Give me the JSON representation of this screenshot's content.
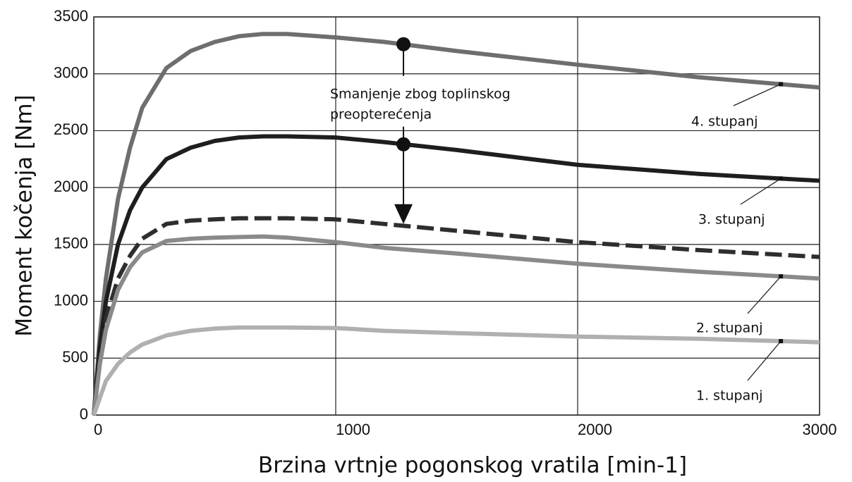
{
  "chart_data": {
    "type": "line",
    "xlabel": "Brzina vrtnje pogonskog vratila [min-1]",
    "ylabel": "Moment kočenja [Nm]",
    "x": [
      0,
      25,
      50,
      100,
      150,
      200,
      300,
      400,
      500,
      600,
      700,
      800,
      1000,
      1200,
      1500,
      2000,
      2500,
      3000
    ],
    "series": [
      {
        "name": "4. stupanj",
        "color": "#6e6e6e",
        "values": [
          0,
          700,
          1200,
          1900,
          2350,
          2700,
          3050,
          3200,
          3280,
          3330,
          3350,
          3350,
          3320,
          3280,
          3200,
          3080,
          2970,
          2880
        ]
      },
      {
        "name": "3. stupanj",
        "color": "#1e1e1e",
        "values": [
          0,
          600,
          1000,
          1500,
          1800,
          2000,
          2250,
          2350,
          2410,
          2440,
          2450,
          2450,
          2440,
          2400,
          2330,
          2200,
          2120,
          2060
        ]
      },
      {
        "color": "#2e2e2e",
        "dashed": true,
        "values": [
          0,
          500,
          850,
          1200,
          1400,
          1550,
          1680,
          1710,
          1720,
          1730,
          1730,
          1730,
          1720,
          1680,
          1620,
          1520,
          1450,
          1390
        ]
      },
      {
        "name": "2. stupanj",
        "color": "#8a8a8a",
        "values": [
          0,
          450,
          750,
          1100,
          1300,
          1430,
          1530,
          1550,
          1560,
          1565,
          1570,
          1560,
          1520,
          1470,
          1420,
          1330,
          1260,
          1200
        ]
      },
      {
        "name": "1. stupanj",
        "color": "#b0b0b0",
        "values": [
          0,
          150,
          300,
          450,
          550,
          620,
          700,
          740,
          760,
          770,
          770,
          770,
          765,
          740,
          720,
          690,
          670,
          640
        ]
      }
    ],
    "annotation": {
      "text": [
        "Smanjenje zbog toplinskog",
        "preopterećenja"
      ],
      "x": 1280,
      "from": 3260,
      "mid": 2380,
      "to": 1680
    },
    "xlim": [
      0,
      3000
    ],
    "xticks": [
      0,
      1000,
      2000,
      3000
    ],
    "ylim": [
      0,
      3500
    ],
    "yticks": [
      0,
      500,
      1000,
      1500,
      2000,
      2500,
      3000,
      3500
    ],
    "grid": true
  }
}
